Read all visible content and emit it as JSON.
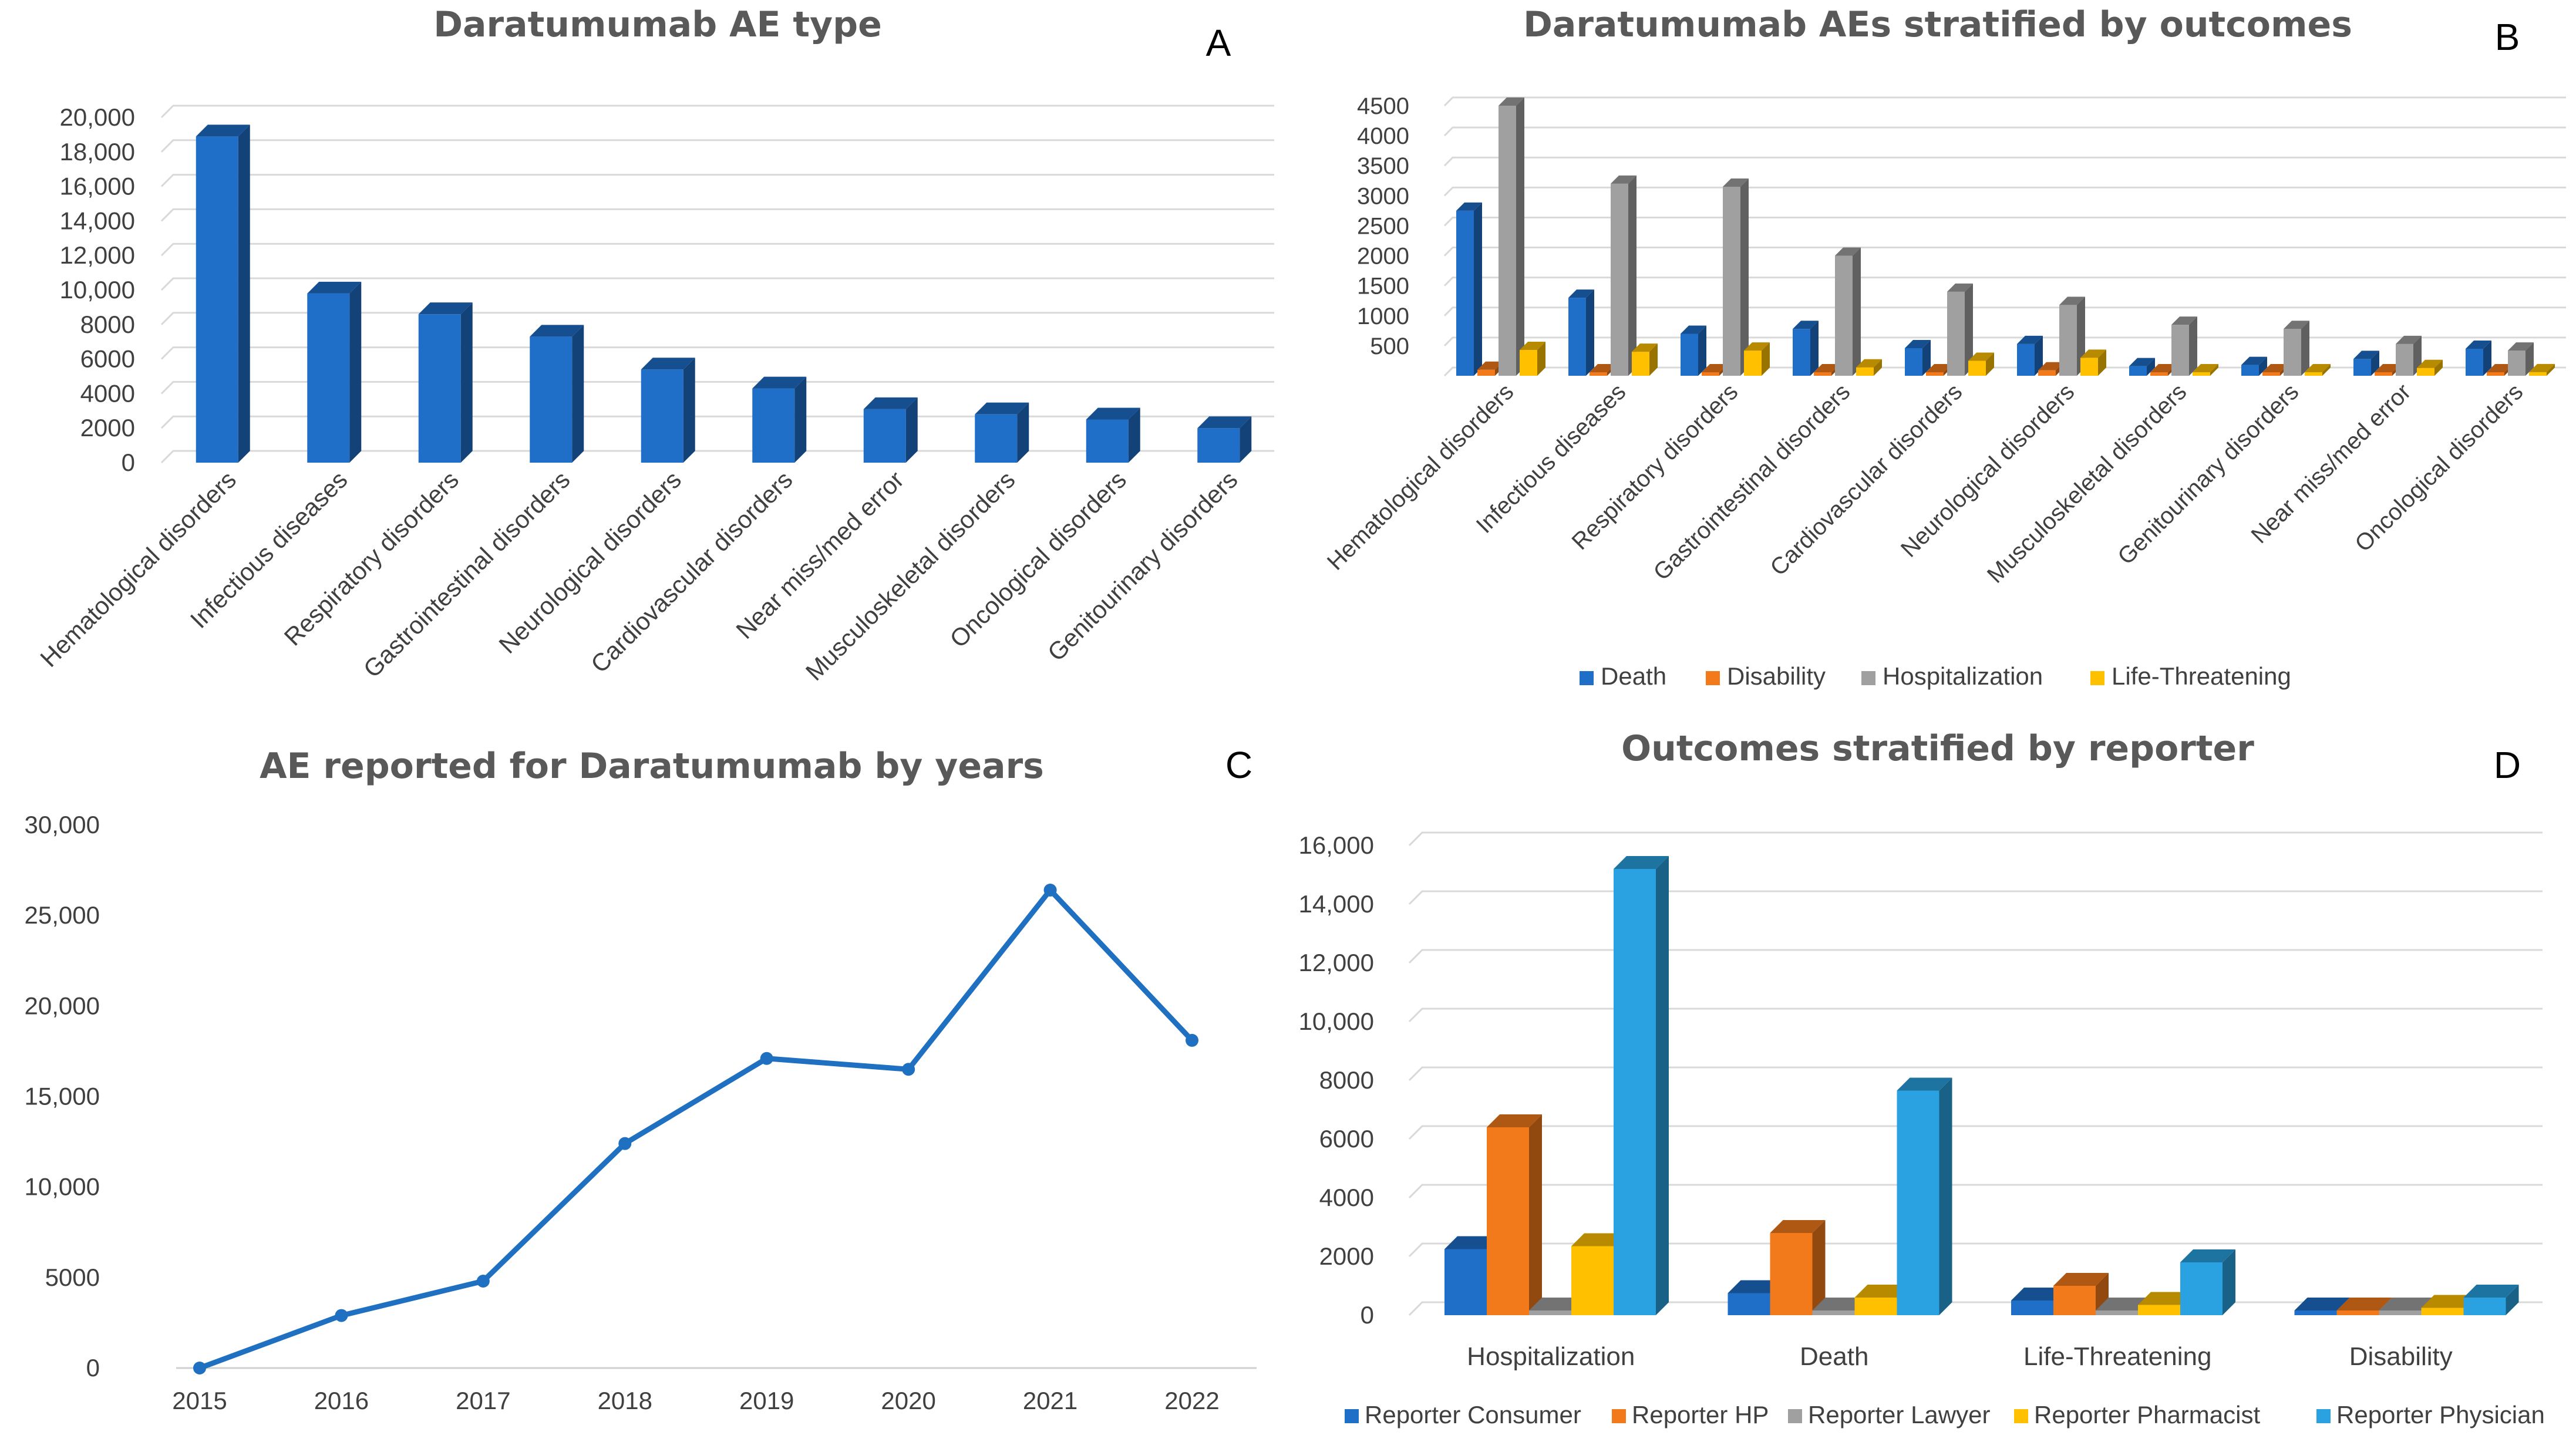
{
  "colors": {
    "blue": "#1f6ec8",
    "orange": "#f27a1a",
    "gray": "#a0a0a0",
    "yellow": "#ffc000",
    "lightblue": "#2aa1e0",
    "line": "#1f70c1"
  },
  "chart_data": [
    {
      "id": "A",
      "panel_label": "A",
      "type": "bar",
      "title": "Daratumumab AE type",
      "categories": [
        "Hematological disorders",
        "Infectious diseases",
        "Respiratory disorders",
        "Gastrointestinal disorders",
        "Neurological disorders",
        "Cardiovascular disorders",
        "Near miss/med error",
        "Musculoskeletal disorders",
        "Oncological disorders",
        "Genitourinary disorders"
      ],
      "values": [
        18900,
        9800,
        8600,
        7300,
        5400,
        4300,
        3100,
        2800,
        2500,
        2000
      ],
      "ylim": [
        0,
        20000
      ],
      "yticks": [
        0,
        2000,
        4000,
        6000,
        8000,
        10000,
        12000,
        14000,
        16000,
        18000,
        20000
      ],
      "ytick_labels": [
        "0",
        "2000",
        "4000",
        "6000",
        "8000",
        "10,000",
        "12,000",
        "14,000",
        "16,000",
        "18,000",
        "20,000"
      ],
      "xlabel": "",
      "ylabel": "",
      "grid": true
    },
    {
      "id": "B",
      "panel_label": "B",
      "type": "bar",
      "title": "Daratumumab AEs stratified by outcomes",
      "categories": [
        "Hematological disorders",
        "Infectious diseases",
        "Respiratory disorders",
        "Gastrointestinal disorders",
        "Cardiovascular disorders",
        "Neurological disorders",
        "Musculoskeletal disorders",
        "Genitourinary disorders",
        "Near miss/med error",
        "Oncological disorders"
      ],
      "series": [
        {
          "name": "Death",
          "color": "#1f6ec8",
          "values": [
            2750,
            1300,
            700,
            780,
            460,
            530,
            160,
            180,
            280,
            450
          ]
        },
        {
          "name": "Disability",
          "color": "#f27a1a",
          "values": [
            100,
            50,
            50,
            50,
            40,
            90,
            20,
            20,
            20,
            30
          ]
        },
        {
          "name": "Hospitalization",
          "color": "#a0a0a0",
          "values": [
            4500,
            3200,
            3150,
            2000,
            1400,
            1180,
            850,
            780,
            530,
            420
          ]
        },
        {
          "name": "Life-Threatening",
          "color": "#ffc000",
          "values": [
            430,
            400,
            420,
            140,
            250,
            300,
            50,
            40,
            130,
            60
          ]
        }
      ],
      "ylim": [
        0,
        4500
      ],
      "yticks": [
        500,
        1000,
        1500,
        2000,
        2500,
        3000,
        3500,
        4000,
        4500
      ],
      "ytick_labels": [
        "500",
        "1000",
        "1500",
        "2000",
        "2500",
        "3000",
        "3500",
        "4000",
        "4500"
      ],
      "legend_position": "bottom",
      "grid": true
    },
    {
      "id": "C",
      "panel_label": "C",
      "type": "line",
      "title": "AE reported for Daratumumab by years",
      "x": [
        "2015",
        "2016",
        "2017",
        "2018",
        "2019",
        "2020",
        "2021",
        "2022"
      ],
      "values": [
        0,
        2900,
        4800,
        12400,
        17100,
        16500,
        26400,
        18100
      ],
      "ylim": [
        0,
        30000
      ],
      "yticks": [
        0,
        5000,
        10000,
        15000,
        20000,
        25000,
        30000
      ],
      "ytick_labels": [
        "0",
        "5000",
        "10,000",
        "15,000",
        "20,000",
        "25,000",
        "30,000"
      ],
      "grid": false
    },
    {
      "id": "D",
      "panel_label": "D",
      "type": "bar",
      "title": "Outcomes stratified by reporter",
      "categories": [
        "Hospitalization",
        "Death",
        "Life-Threatening",
        "Disability"
      ],
      "series": [
        {
          "name": "Reporter Consumer",
          "color": "#1f6ec8",
          "values": [
            2250,
            750,
            500,
            50
          ]
        },
        {
          "name": "Reporter HP",
          "color": "#f27a1a",
          "values": [
            6400,
            2800,
            1000,
            100
          ]
        },
        {
          "name": "Reporter Lawyer",
          "color": "#a0a0a0",
          "values": [
            100,
            100,
            100,
            50
          ]
        },
        {
          "name": "Reporter Pharmacist",
          "color": "#ffc000",
          "values": [
            2350,
            600,
            350,
            250
          ]
        },
        {
          "name": "Reporter Physician",
          "color": "#2aa1e0",
          "values": [
            15200,
            7650,
            1800,
            600
          ]
        }
      ],
      "ylim": [
        0,
        16000
      ],
      "yticks": [
        0,
        2000,
        4000,
        6000,
        8000,
        10000,
        12000,
        14000,
        16000
      ],
      "ytick_labels": [
        "0",
        "2000",
        "4000",
        "6000",
        "8000",
        "10,000",
        "12,000",
        "14,000",
        "16,000"
      ],
      "legend_position": "bottom",
      "grid": true
    }
  ]
}
